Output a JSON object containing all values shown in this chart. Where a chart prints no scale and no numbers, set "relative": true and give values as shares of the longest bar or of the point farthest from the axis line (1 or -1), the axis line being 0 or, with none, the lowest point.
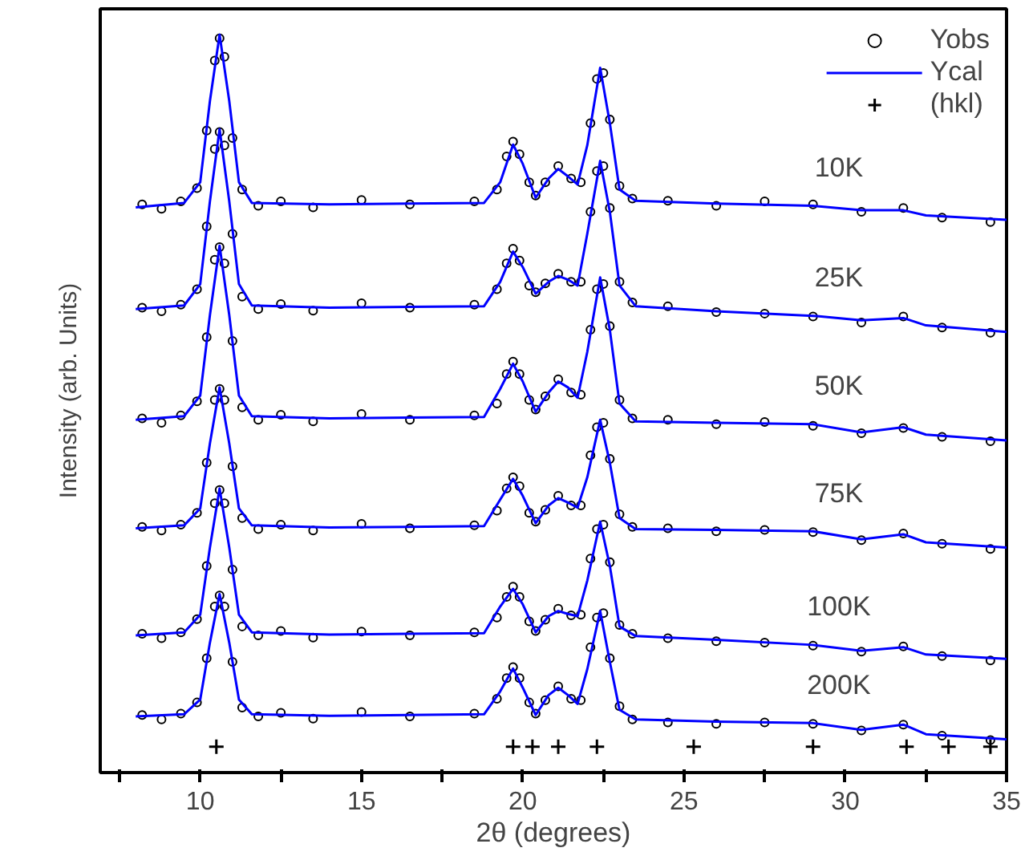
{
  "chart_data": {
    "type": "line",
    "relative": true,
    "xlabel": "2θ (degrees)",
    "ylabel": "Intensity (arb. Units)",
    "xlim": [
      6.9,
      35
    ],
    "xticks": [
      {
        "value": 7.5,
        "label": null
      },
      10,
      {
        "value": 12.5,
        "label": null
      },
      15,
      {
        "value": 17.5,
        "label": null
      },
      20,
      {
        "value": 22.5,
        "label": null
      },
      25,
      {
        "value": 27.5,
        "label": null
      },
      30,
      {
        "value": 32.5,
        "label": null
      },
      35
    ],
    "grid": false,
    "legend": "top right",
    "series": [
      {
        "name": "Yobs",
        "type": "scatter",
        "marker": "circle",
        "color": "#000000",
        "x": [
          8.2,
          8.8,
          9.4,
          9.9,
          10.2,
          10.45,
          10.6,
          10.75,
          11.0,
          11.3,
          11.8,
          12.5,
          13.5,
          15,
          16.5,
          18.5,
          19.2,
          19.5,
          19.7,
          19.9,
          20.2,
          20.4,
          20.7,
          21.1,
          21.5,
          21.8,
          22.1,
          22.3,
          22.5,
          22.7,
          23.0,
          23.4,
          24.5,
          26,
          27.5,
          29,
          30.5,
          31.8,
          33,
          34.5
        ],
        "values": [
          0.77,
          0.764,
          0.774,
          0.792,
          0.87,
          0.965,
          0.995,
          0.97,
          0.86,
          0.79,
          0.768,
          0.774,
          0.766,
          0.776,
          0.77,
          0.774,
          0.79,
          0.835,
          0.855,
          0.838,
          0.8,
          0.782,
          0.8,
          0.822,
          0.805,
          0.8,
          0.88,
          0.94,
          0.948,
          0.885,
          0.795,
          0.778,
          0.775,
          0.768,
          0.774,
          0.77,
          0.76,
          0.765,
          0.752,
          0.746
        ]
      },
      {
        "name": "Ycal",
        "color": "#0000ff",
        "x": [
          8.0,
          9.5,
          10.0,
          10.3,
          10.6,
          10.9,
          11.2,
          11.6,
          14,
          18.8,
          19.3,
          19.7,
          20.0,
          20.4,
          20.8,
          21.1,
          21.4,
          21.7,
          22.0,
          22.4,
          22.7,
          23.0,
          23.5,
          26,
          29,
          30.5,
          31.8,
          32.5,
          35
        ],
        "values": [
          0.766,
          0.772,
          0.8,
          0.91,
          1.0,
          0.91,
          0.8,
          0.772,
          0.77,
          0.772,
          0.8,
          0.851,
          0.825,
          0.779,
          0.805,
          0.818,
          0.808,
          0.797,
          0.85,
          0.955,
          0.88,
          0.79,
          0.775,
          0.771,
          0.768,
          0.762,
          0.762,
          0.755,
          0.749
        ]
      },
      {
        "type": "scatter",
        "marker": "circle",
        "color": "#000000",
        "x": [
          8.2,
          8.8,
          9.4,
          9.9,
          10.2,
          10.45,
          10.6,
          10.75,
          11.0,
          11.3,
          11.8,
          12.5,
          13.5,
          15,
          16.5,
          18.5,
          19.2,
          19.5,
          19.7,
          19.9,
          20.2,
          20.4,
          20.7,
          21.1,
          21.5,
          21.8,
          22.1,
          22.3,
          22.5,
          22.7,
          23.0,
          23.4,
          24.5,
          26,
          27.5,
          29,
          30.5,
          31.8,
          33,
          34.5
        ],
        "values": [
          0.63,
          0.625,
          0.634,
          0.655,
          0.74,
          0.845,
          0.868,
          0.85,
          0.73,
          0.645,
          0.628,
          0.635,
          0.626,
          0.636,
          0.63,
          0.634,
          0.655,
          0.69,
          0.71,
          0.694,
          0.66,
          0.651,
          0.663,
          0.676,
          0.665,
          0.665,
          0.76,
          0.815,
          0.822,
          0.765,
          0.665,
          0.637,
          0.632,
          0.624,
          0.622,
          0.618,
          0.61,
          0.618,
          0.603,
          0.596
        ]
      },
      {
        "color": "#0000ff",
        "x": [
          8.0,
          9.5,
          10.0,
          10.3,
          10.6,
          10.9,
          11.2,
          11.6,
          14,
          18.8,
          19.3,
          19.7,
          20.0,
          20.4,
          20.8,
          21.1,
          21.4,
          21.7,
          22.0,
          22.4,
          22.7,
          23.0,
          23.5,
          26,
          29,
          30.5,
          31.8,
          32.5,
          35
        ],
        "values": [
          0.628,
          0.633,
          0.662,
          0.774,
          0.872,
          0.774,
          0.662,
          0.633,
          0.63,
          0.632,
          0.665,
          0.706,
          0.685,
          0.649,
          0.665,
          0.673,
          0.668,
          0.66,
          0.73,
          0.829,
          0.76,
          0.66,
          0.632,
          0.625,
          0.619,
          0.613,
          0.616,
          0.606,
          0.597
        ]
      },
      {
        "type": "scatter",
        "marker": "circle",
        "color": "#000000",
        "x": [
          8.2,
          8.8,
          9.4,
          9.9,
          10.2,
          10.45,
          10.6,
          10.75,
          11.0,
          11.3,
          11.8,
          12.5,
          13.5,
          15,
          16.5,
          18.5,
          19.2,
          19.5,
          19.7,
          19.9,
          20.2,
          20.4,
          20.7,
          21.1,
          21.5,
          21.8,
          22.1,
          22.3,
          22.5,
          22.7,
          23.0,
          23.4,
          24.5,
          26,
          27.5,
          29,
          30.5,
          31.8,
          33,
          34.5
        ],
        "values": [
          0.48,
          0.474,
          0.484,
          0.503,
          0.59,
          0.695,
          0.712,
          0.69,
          0.585,
          0.495,
          0.478,
          0.485,
          0.476,
          0.486,
          0.478,
          0.484,
          0.5,
          0.54,
          0.557,
          0.54,
          0.505,
          0.492,
          0.51,
          0.533,
          0.515,
          0.512,
          0.6,
          0.655,
          0.662,
          0.605,
          0.505,
          0.48,
          0.478,
          0.472,
          0.475,
          0.47,
          0.46,
          0.467,
          0.455,
          0.449
        ]
      },
      {
        "color": "#0000ff",
        "x": [
          8.0,
          9.5,
          10.0,
          10.3,
          10.6,
          10.9,
          11.2,
          11.6,
          14,
          18.8,
          19.3,
          19.7,
          20.0,
          20.4,
          20.8,
          21.1,
          21.4,
          21.7,
          22.0,
          22.4,
          22.7,
          23.0,
          23.5,
          26,
          29,
          30.5,
          31.8,
          32.5,
          35
        ],
        "values": [
          0.478,
          0.483,
          0.511,
          0.62,
          0.714,
          0.62,
          0.511,
          0.483,
          0.48,
          0.482,
          0.52,
          0.554,
          0.53,
          0.489,
          0.515,
          0.53,
          0.522,
          0.508,
          0.57,
          0.671,
          0.6,
          0.5,
          0.476,
          0.474,
          0.472,
          0.461,
          0.468,
          0.458,
          0.45
        ]
      },
      {
        "type": "scatter",
        "marker": "circle",
        "color": "#000000",
        "x": [
          8.2,
          8.8,
          9.4,
          9.9,
          10.2,
          10.45,
          10.6,
          10.75,
          11.0,
          11.3,
          11.8,
          12.5,
          13.5,
          15,
          16.5,
          18.5,
          19.2,
          19.5,
          19.7,
          19.9,
          20.2,
          20.4,
          20.7,
          21.1,
          21.5,
          21.8,
          22.1,
          22.3,
          22.5,
          22.7,
          23.0,
          23.4,
          24.5,
          26,
          27.5,
          29,
          30.5,
          31.8,
          33,
          34.5
        ],
        "values": [
          0.333,
          0.328,
          0.336,
          0.352,
          0.42,
          0.505,
          0.52,
          0.505,
          0.415,
          0.345,
          0.33,
          0.336,
          0.328,
          0.337,
          0.331,
          0.335,
          0.355,
          0.385,
          0.4,
          0.388,
          0.352,
          0.34,
          0.356,
          0.375,
          0.362,
          0.362,
          0.43,
          0.468,
          0.474,
          0.425,
          0.35,
          0.333,
          0.331,
          0.327,
          0.329,
          0.326,
          0.315,
          0.324,
          0.31,
          0.303
        ]
      },
      {
        "color": "#0000ff",
        "x": [
          8.0,
          9.5,
          10.0,
          10.3,
          10.6,
          10.9,
          11.2,
          11.6,
          14,
          18.8,
          19.3,
          19.7,
          20.0,
          20.4,
          20.8,
          21.1,
          21.4,
          21.7,
          22.0,
          22.4,
          22.7,
          23.0,
          23.5,
          26,
          29,
          30.5,
          31.8,
          32.5,
          35
        ],
        "values": [
          0.331,
          0.335,
          0.358,
          0.446,
          0.522,
          0.446,
          0.358,
          0.335,
          0.332,
          0.334,
          0.37,
          0.398,
          0.375,
          0.338,
          0.362,
          0.372,
          0.366,
          0.359,
          0.4,
          0.478,
          0.42,
          0.345,
          0.33,
          0.329,
          0.327,
          0.316,
          0.323,
          0.312,
          0.305
        ]
      },
      {
        "type": "scatter",
        "marker": "circle",
        "color": "#000000",
        "x": [
          8.2,
          8.8,
          9.4,
          9.9,
          10.2,
          10.45,
          10.6,
          10.75,
          11.0,
          11.3,
          11.8,
          12.5,
          13.5,
          15,
          16.5,
          18.5,
          19.2,
          19.5,
          19.7,
          19.9,
          20.2,
          20.4,
          20.7,
          21.1,
          21.5,
          21.8,
          22.1,
          22.3,
          22.5,
          22.7,
          23.0,
          23.4,
          24.5,
          26,
          27.5,
          29,
          30.5,
          31.8,
          33,
          34.5
        ],
        "values": [
          0.188,
          0.182,
          0.19,
          0.208,
          0.28,
          0.365,
          0.383,
          0.365,
          0.275,
          0.198,
          0.186,
          0.192,
          0.183,
          0.191,
          0.186,
          0.19,
          0.21,
          0.238,
          0.252,
          0.238,
          0.205,
          0.192,
          0.207,
          0.222,
          0.213,
          0.214,
          0.29,
          0.33,
          0.336,
          0.285,
          0.2,
          0.188,
          0.182,
          0.178,
          0.176,
          0.172,
          0.164,
          0.171,
          0.158,
          0.152
        ]
      },
      {
        "color": "#0000ff",
        "x": [
          8.0,
          9.5,
          10.0,
          10.3,
          10.6,
          10.9,
          11.2,
          11.6,
          14,
          18.8,
          19.3,
          19.7,
          20.0,
          20.4,
          20.8,
          21.1,
          21.4,
          21.7,
          22.0,
          22.4,
          22.7,
          23.0,
          23.5,
          26,
          29,
          30.5,
          31.8,
          32.5,
          35
        ],
        "values": [
          0.186,
          0.19,
          0.214,
          0.305,
          0.385,
          0.305,
          0.214,
          0.19,
          0.187,
          0.189,
          0.225,
          0.249,
          0.228,
          0.19,
          0.212,
          0.219,
          0.215,
          0.212,
          0.26,
          0.34,
          0.28,
          0.198,
          0.185,
          0.18,
          0.173,
          0.165,
          0.17,
          0.16,
          0.154
        ]
      },
      {
        "type": "scatter",
        "marker": "circle",
        "color": "#000000",
        "x": [
          8.2,
          8.8,
          9.4,
          9.9,
          10.2,
          10.45,
          10.6,
          10.75,
          11.0,
          11.3,
          11.8,
          12.5,
          13.5,
          15,
          16.5,
          18.5,
          19.2,
          19.5,
          19.7,
          19.9,
          20.2,
          20.4,
          20.7,
          21.1,
          21.5,
          21.8,
          22.1,
          22.3,
          22.5,
          22.7,
          23.0,
          23.4,
          24.5,
          26,
          27.5,
          29,
          30.5,
          31.8,
          33,
          34.5
        ],
        "values": [
          0.078,
          0.072,
          0.08,
          0.095,
          0.155,
          0.225,
          0.24,
          0.225,
          0.15,
          0.088,
          0.076,
          0.081,
          0.073,
          0.082,
          0.076,
          0.08,
          0.1,
          0.128,
          0.143,
          0.128,
          0.095,
          0.08,
          0.098,
          0.117,
          0.1,
          0.098,
          0.17,
          0.21,
          0.216,
          0.155,
          0.09,
          0.072,
          0.068,
          0.066,
          0.068,
          0.066,
          0.057,
          0.065,
          0.05,
          0.044
        ]
      },
      {
        "color": "#0000ff",
        "x": [
          8.0,
          9.5,
          10.0,
          10.3,
          10.6,
          10.9,
          11.2,
          11.6,
          14,
          18.8,
          19.3,
          19.7,
          20.0,
          20.4,
          20.8,
          21.1,
          21.4,
          21.7,
          22.0,
          22.4,
          22.7,
          23.0,
          23.5,
          26,
          29,
          30.5,
          31.8,
          32.5,
          35
        ],
        "values": [
          0.076,
          0.079,
          0.099,
          0.176,
          0.242,
          0.176,
          0.099,
          0.079,
          0.077,
          0.079,
          0.11,
          0.141,
          0.115,
          0.078,
          0.105,
          0.115,
          0.105,
          0.093,
          0.14,
          0.219,
          0.15,
          0.085,
          0.072,
          0.069,
          0.067,
          0.058,
          0.065,
          0.052,
          0.045
        ]
      },
      {
        "name": "(hkl)",
        "type": "scatter",
        "marker": "cross",
        "color": "#000000",
        "x": [
          10.5,
          19.7,
          20.3,
          21.1,
          22.3,
          25.3,
          29.0,
          31.9,
          33.2,
          34.5
        ],
        "values": [
          0.035,
          0.035,
          0.035,
          0.035,
          0.035,
          0.035,
          0.035,
          0.035,
          0.035,
          0.035
        ]
      }
    ],
    "annotations": [
      "10K",
      "25K",
      "50K",
      "75K",
      "100K",
      "200K"
    ]
  }
}
